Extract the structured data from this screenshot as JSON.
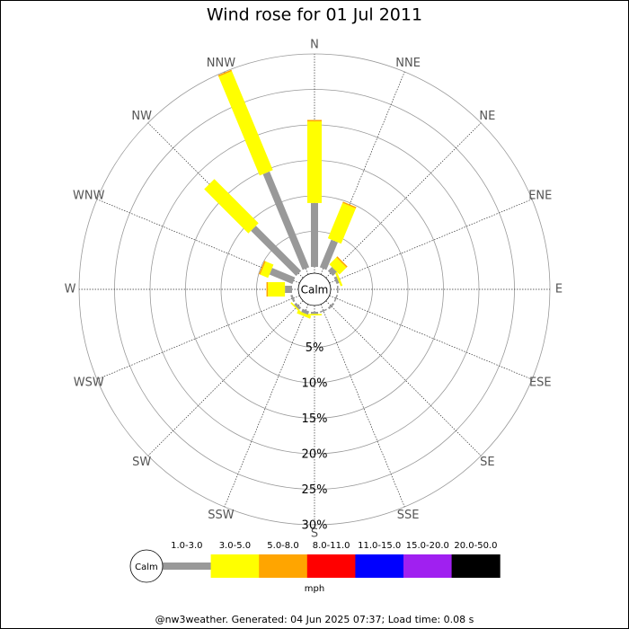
{
  "chart_data": {
    "type": "windrose",
    "title": "Wind rose for 01 Jul 2011",
    "categories": [
      "N",
      "NNE",
      "NE",
      "ENE",
      "E",
      "ESE",
      "SE",
      "SSE",
      "S",
      "SSW",
      "SW",
      "WSW",
      "W",
      "WNW",
      "NW",
      "NNW"
    ],
    "calm_label": "Calm",
    "units": "mph",
    "rlim": [
      0,
      30
    ],
    "rticks": [
      {
        "value": 5,
        "label": "5%"
      },
      {
        "value": 10,
        "label": "10%"
      },
      {
        "value": 15,
        "label": "15%"
      },
      {
        "value": 20,
        "label": "20%"
      },
      {
        "value": 25,
        "label": "25%"
      },
      {
        "value": 30,
        "label": "30%"
      }
    ],
    "series": [
      {
        "name": "1.0-3.0",
        "color": "#999999",
        "values": [
          9.0,
          4.2,
          0.8,
          0.4,
          0.2,
          0.2,
          0.3,
          0.2,
          0.3,
          0.5,
          0.4,
          0.3,
          1.0,
          3.5,
          9.0,
          14.6
        ]
      },
      {
        "name": "3.0-5.0",
        "color": "#ffff00",
        "values": [
          11.5,
          5.4,
          1.4,
          0.3,
          0,
          0,
          0,
          0,
          0.2,
          0.4,
          0.2,
          0,
          2.4,
          1.2,
          8.8,
          15.1
        ]
      },
      {
        "name": "5.0-8.0",
        "color": "#ffa500",
        "values": [
          0.2,
          0.2,
          0.2,
          0,
          0,
          0,
          0,
          0,
          0,
          0,
          0,
          0,
          0.2,
          0.2,
          0,
          0.2
        ]
      },
      {
        "name": "8.0-11.0",
        "color": "#ff0000",
        "values": [
          0,
          0,
          0,
          0,
          0,
          0,
          0,
          0,
          0,
          0,
          0,
          0,
          0,
          0,
          0,
          0
        ]
      },
      {
        "name": "11.0-15.0",
        "color": "#0000ff",
        "values": [
          0,
          0,
          0,
          0,
          0,
          0,
          0,
          0,
          0,
          0,
          0,
          0,
          0,
          0,
          0,
          0
        ]
      },
      {
        "name": "15.0-20.0",
        "color": "#a020f0",
        "values": [
          0,
          0,
          0,
          0,
          0,
          0,
          0,
          0,
          0,
          0,
          0,
          0,
          0,
          0,
          0,
          0
        ]
      },
      {
        "name": "20.0-50.0",
        "color": "#000000",
        "values": [
          0,
          0,
          0,
          0,
          0,
          0,
          0,
          0,
          0,
          0,
          0,
          0,
          0,
          0,
          0,
          0
        ]
      }
    ],
    "footer": "@nw3weather. Generated: 04 Jun 2025 07:37; Load time: 0.08 s"
  }
}
